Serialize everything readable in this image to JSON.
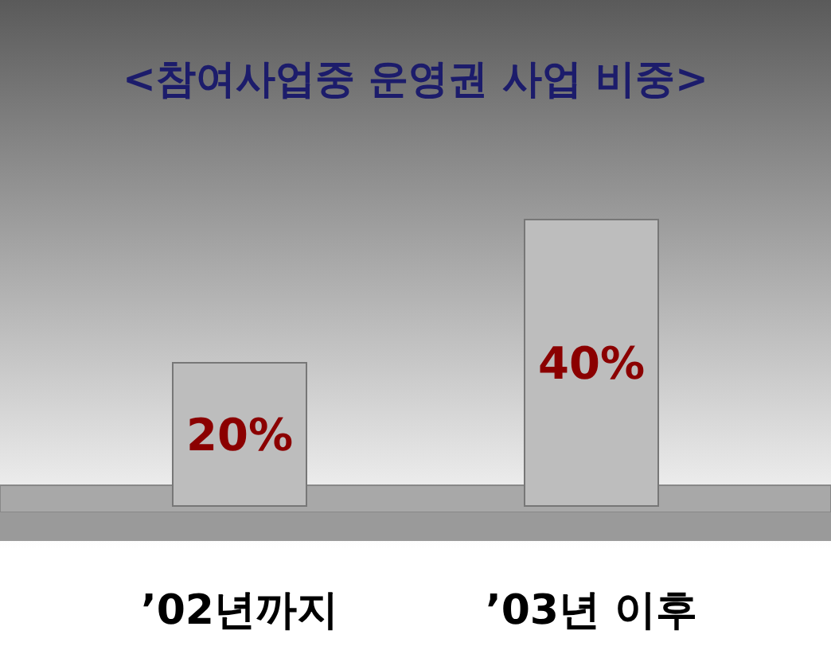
{
  "chart_data": {
    "type": "bar",
    "title": "<참여사업중 운영권 사업 비중>",
    "categories": [
      "’02년까지",
      "’03년 이후"
    ],
    "values": [
      20,
      40
    ],
    "color": "#bdbdbd",
    "value_labels": [
      "20%",
      "40%"
    ]
  }
}
